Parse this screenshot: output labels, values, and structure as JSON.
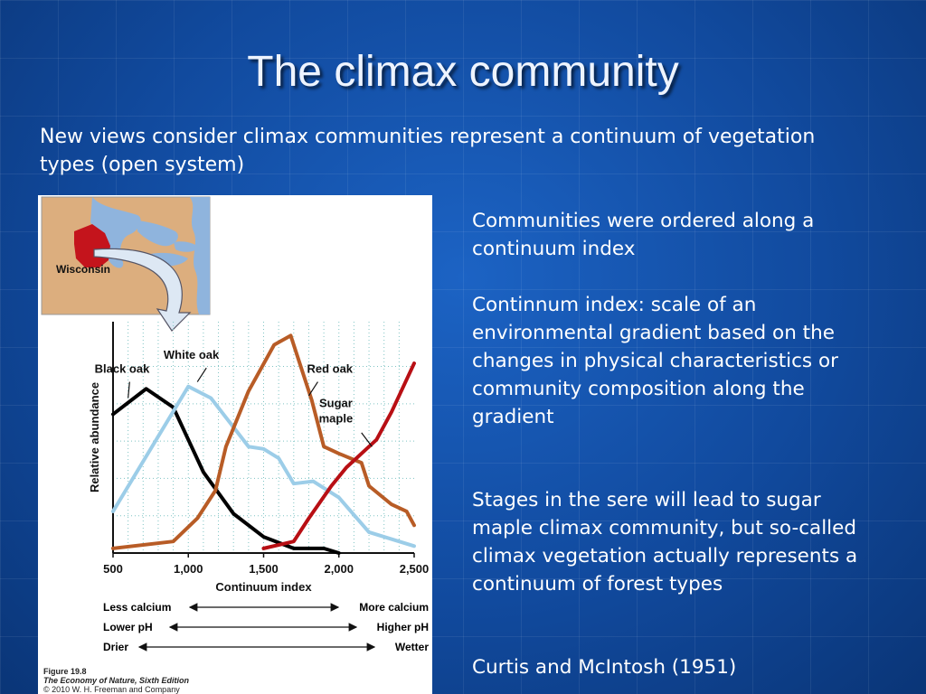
{
  "slide": {
    "title": "The climax community",
    "intro": "New views consider climax communities represent a continuum of vegetation types (open system)",
    "paragraphs": [
      "Communities were ordered along a continuum index",
      "Continnum index: scale of an environmental gradient based on the changes in physical characteristics or community composition along the gradient",
      "Stages in the sere will lead to sugar maple climax community, but so-called climax vegetation actually represents a continuum of forest types",
      "Curtis and McIntosh (1951)"
    ]
  },
  "figure": {
    "map_label": "Wisconsin",
    "gradients": [
      {
        "left": "Less calcium",
        "right": "More calcium"
      },
      {
        "left": "Lower pH",
        "right": "Higher pH"
      },
      {
        "left": "Drier",
        "right": "Wetter"
      }
    ],
    "caption_number": "Figure 19.8",
    "caption_book": "The Economy of Nature, Sixth Edition",
    "caption_copyright": "© 2010 W. H. Freeman and Company",
    "colors": {
      "map_land": "#dcae7e",
      "map_water": "#8fb4dd",
      "wisconsin": "#c4141c",
      "arrow": "#dde8f4"
    }
  },
  "chart_data": {
    "type": "line",
    "xlabel": "Continuum index",
    "ylabel": "Relative abundance",
    "xlim": [
      500,
      2500
    ],
    "ylim": [
      0,
      1
    ],
    "x_ticks": [
      500,
      1000,
      1500,
      2000,
      2500
    ],
    "x_tick_labels": [
      "500",
      "1,000",
      "1,500",
      "2,000",
      "2,500"
    ],
    "grid": true,
    "series": [
      {
        "name": "Black oak",
        "color": "#000000",
        "label_x": 560,
        "label_y": 0.78,
        "points": [
          [
            500,
            0.6
          ],
          [
            720,
            0.71
          ],
          [
            900,
            0.63
          ],
          [
            1100,
            0.35
          ],
          [
            1300,
            0.17
          ],
          [
            1500,
            0.07
          ],
          [
            1700,
            0.02
          ],
          [
            1900,
            0.02
          ],
          [
            2000,
            0.0
          ]
        ]
      },
      {
        "name": "White oak",
        "color": "#9ccde8",
        "label_x": 1020,
        "label_y": 0.84,
        "points": [
          [
            500,
            0.18
          ],
          [
            1000,
            0.72
          ],
          [
            1150,
            0.67
          ],
          [
            1400,
            0.46
          ],
          [
            1500,
            0.45
          ],
          [
            1600,
            0.41
          ],
          [
            1700,
            0.3
          ],
          [
            1830,
            0.31
          ],
          [
            2000,
            0.24
          ],
          [
            2200,
            0.09
          ],
          [
            2500,
            0.03
          ]
        ]
      },
      {
        "name": "Red oak",
        "color": "#b85c26",
        "label_x": 1940,
        "label_y": 0.78,
        "points": [
          [
            500,
            0.02
          ],
          [
            900,
            0.05
          ],
          [
            1060,
            0.15
          ],
          [
            1180,
            0.27
          ],
          [
            1250,
            0.46
          ],
          [
            1400,
            0.7
          ],
          [
            1570,
            0.9
          ],
          [
            1680,
            0.94
          ],
          [
            1820,
            0.66
          ],
          [
            1900,
            0.46
          ],
          [
            2000,
            0.43
          ],
          [
            2150,
            0.39
          ],
          [
            2200,
            0.29
          ],
          [
            2350,
            0.21
          ],
          [
            2450,
            0.18
          ],
          [
            2500,
            0.12
          ]
        ]
      },
      {
        "name": "Sugar maple",
        "color": "#b80f14",
        "label_x": 1980,
        "label_y": 0.63,
        "points": [
          [
            1500,
            0.02
          ],
          [
            1700,
            0.05
          ],
          [
            1800,
            0.15
          ],
          [
            1950,
            0.29
          ],
          [
            2050,
            0.37
          ],
          [
            2250,
            0.49
          ],
          [
            2350,
            0.61
          ],
          [
            2500,
            0.82
          ]
        ]
      }
    ]
  }
}
